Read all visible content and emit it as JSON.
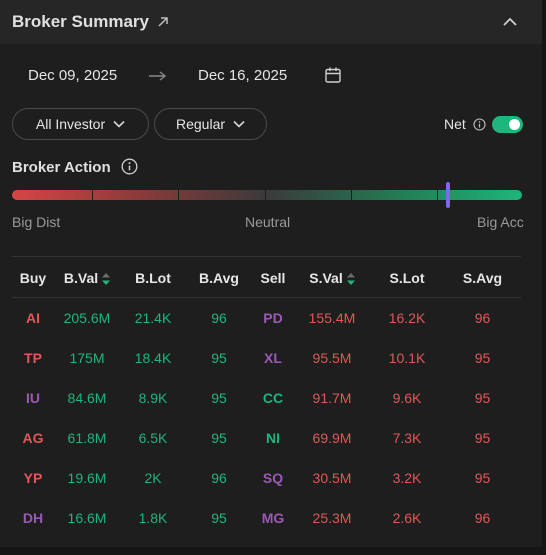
{
  "header": {
    "title": "Broker Summary",
    "external_icon": "external-link-icon",
    "collapse_icon": "chevron-up-icon"
  },
  "dates": {
    "start": "Dec 09, 2025",
    "end": "Dec 16, 2025",
    "arrow_icon": "arrow-right-icon",
    "calendar_icon": "calendar-icon"
  },
  "filters": {
    "investor": "All Investor",
    "type": "Regular",
    "net_label": "Net",
    "net_on": true
  },
  "action": {
    "title": "Broker Action",
    "left_label": "Big Dist",
    "mid_label": "Neutral",
    "right_label": "Big Acc",
    "level": 0.855
  },
  "table": {
    "headers": {
      "buy": "Buy",
      "bval": "B.Val",
      "blot": "B.Lot",
      "bavg": "B.Avg",
      "sell": "Sell",
      "sval": "S.Val",
      "slot": "S.Lot",
      "savg": "S.Avg"
    },
    "rows": [
      {
        "buy": "AI",
        "buy_color": "red",
        "bval": "205.6M",
        "blot": "21.4K",
        "bavg": "96",
        "sell": "PD",
        "sell_color": "purple",
        "sval": "155.4M",
        "slot": "16.2K",
        "savg": "96"
      },
      {
        "buy": "TP",
        "buy_color": "red",
        "bval": "175M",
        "blot": "18.4K",
        "bavg": "95",
        "sell": "XL",
        "sell_color": "purple",
        "sval": "95.5M",
        "slot": "10.1K",
        "savg": "95"
      },
      {
        "buy": "IU",
        "buy_color": "purple",
        "bval": "84.6M",
        "blot": "8.9K",
        "bavg": "95",
        "sell": "CC",
        "sell_color": "green",
        "sval": "91.7M",
        "slot": "9.6K",
        "savg": "95"
      },
      {
        "buy": "AG",
        "buy_color": "red",
        "bval": "61.8M",
        "blot": "6.5K",
        "bavg": "95",
        "sell": "NI",
        "sell_color": "green",
        "sval": "69.9M",
        "slot": "7.3K",
        "savg": "95"
      },
      {
        "buy": "YP",
        "buy_color": "red",
        "bval": "19.6M",
        "blot": "2K",
        "bavg": "96",
        "sell": "SQ",
        "sell_color": "purple",
        "sval": "30.5M",
        "slot": "3.2K",
        "savg": "95"
      },
      {
        "buy": "DH",
        "buy_color": "purple",
        "bval": "16.6M",
        "blot": "1.8K",
        "bavg": "95",
        "sell": "MG",
        "sell_color": "purple",
        "sval": "25.3M",
        "slot": "2.6K",
        "savg": "96"
      }
    ]
  }
}
